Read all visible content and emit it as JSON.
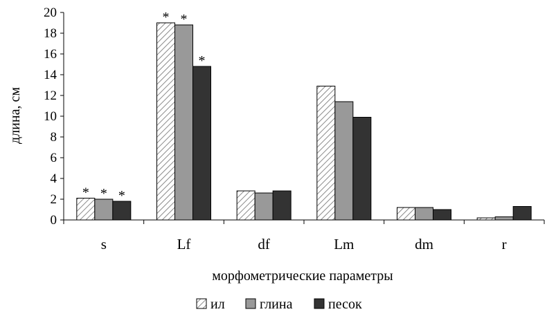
{
  "chart_data": {
    "type": "bar",
    "title": "",
    "xlabel": "морфометрические параметры",
    "ylabel": "длина, см",
    "ylim": [
      0,
      20
    ],
    "yticks": [
      0,
      2,
      4,
      6,
      8,
      10,
      12,
      14,
      16,
      18,
      20
    ],
    "grid": false,
    "legend_position": "bottom",
    "categories": [
      "s",
      "Lf",
      "df",
      "Lm",
      "dm",
      "r"
    ],
    "series": [
      {
        "name": "ил",
        "values": [
          2.1,
          19.0,
          2.8,
          12.9,
          1.2,
          0.2
        ],
        "fill": "hatched",
        "color": "#ffffff"
      },
      {
        "name": "глина",
        "values": [
          2.0,
          18.8,
          2.6,
          11.4,
          1.2,
          0.3
        ],
        "fill": "solid",
        "color": "#999999"
      },
      {
        "name": "песок",
        "values": [
          1.8,
          14.8,
          2.8,
          9.9,
          1.0,
          1.3
        ],
        "fill": "solid",
        "color": "#333333"
      }
    ],
    "annotations": [
      {
        "text": "*",
        "category": "s",
        "series": "ил"
      },
      {
        "text": "*",
        "category": "s",
        "series": "глина"
      },
      {
        "text": "*",
        "category": "s",
        "series": "песок"
      },
      {
        "text": "*",
        "category": "Lf",
        "series": "ил"
      },
      {
        "text": "*",
        "category": "Lf",
        "series": "глина"
      },
      {
        "text": "*",
        "category": "Lf",
        "series": "песок"
      }
    ]
  }
}
